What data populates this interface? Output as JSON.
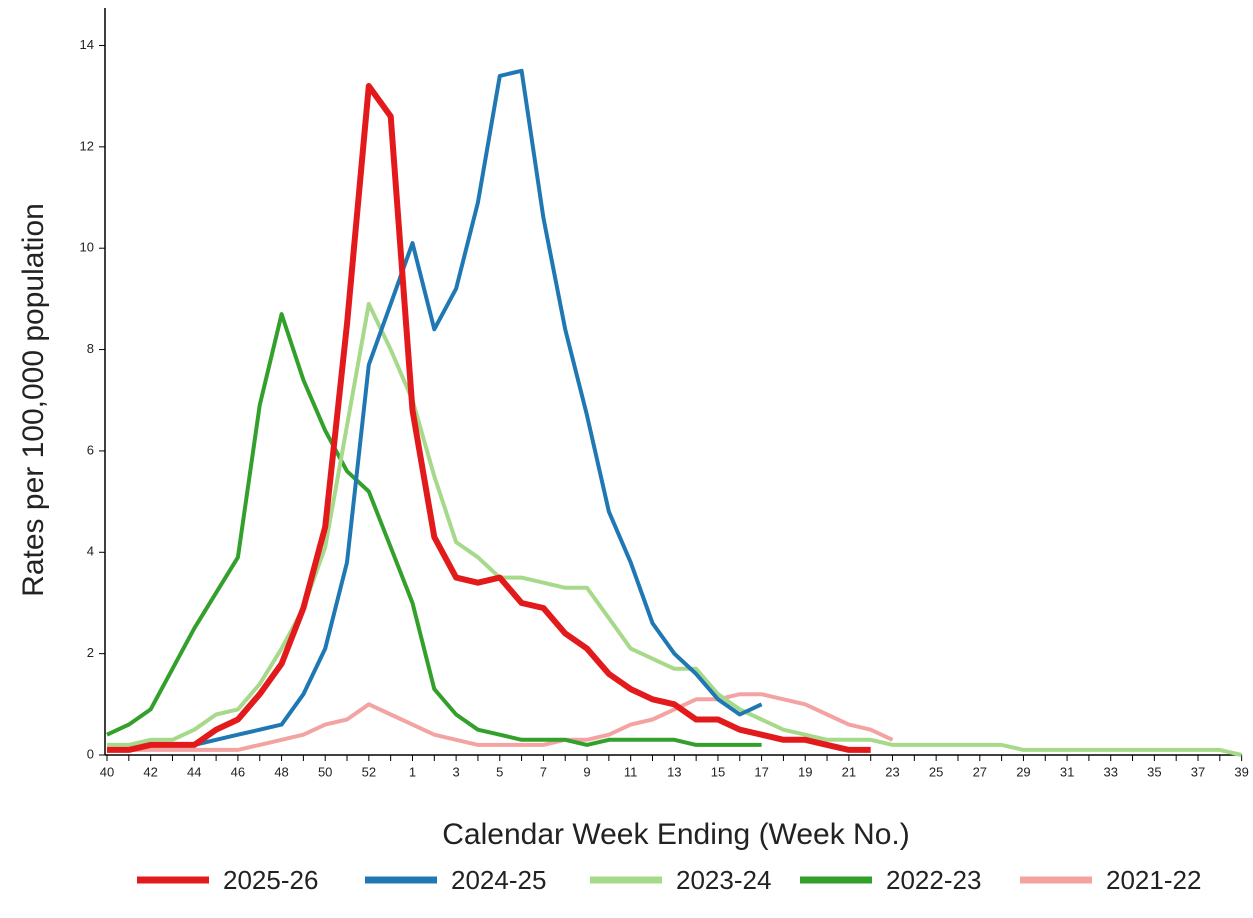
{
  "chart_data": {
    "type": "line",
    "x_label": "Calendar Week Ending (Week No.)",
    "y_label": "Rates per 100,000 population",
    "categories": [
      "40",
      null,
      "42",
      null,
      "44",
      null,
      "46",
      null,
      "48",
      null,
      "50",
      null,
      "52",
      null,
      "1",
      null,
      "3",
      null,
      "5",
      null,
      "7",
      null,
      "9",
      null,
      "11",
      null,
      "13",
      null,
      "15",
      null,
      "17",
      null,
      "19",
      null,
      "21",
      null,
      "23",
      null,
      "25",
      null,
      "27",
      null,
      "29",
      null,
      "31",
      null,
      "33",
      null,
      "35",
      null,
      "37",
      null,
      "39"
    ],
    "ylim": [
      0,
      14.7
    ],
    "yticks": [
      0,
      2,
      4,
      6,
      8,
      10,
      12,
      14
    ],
    "grid": false,
    "legend": "bottom",
    "series": [
      {
        "name": "2025-26",
        "color": "#e31a1c",
        "width": 6,
        "values": [
          0.1,
          0.1,
          0.2,
          0.2,
          0.2,
          0.5,
          0.7,
          1.2,
          1.8,
          2.9,
          4.5,
          8.5,
          13.2,
          12.6,
          6.8,
          4.3,
          3.5,
          3.4,
          3.5,
          3.0,
          2.9,
          2.4,
          2.1,
          1.6,
          1.3,
          1.1,
          1.0,
          0.7,
          0.7,
          0.5,
          0.4,
          0.3,
          0.3,
          0.2,
          0.1,
          0.1,
          null,
          null,
          null,
          null,
          null,
          null,
          null,
          null,
          null,
          null,
          null,
          null,
          null,
          null,
          null,
          null,
          null
        ]
      },
      {
        "name": "2024-25",
        "color": "#1f78b4",
        "width": 4,
        "values": [
          0.1,
          0.1,
          0.2,
          0.2,
          0.2,
          0.3,
          0.4,
          0.5,
          0.6,
          1.2,
          2.1,
          3.8,
          7.7,
          8.9,
          10.1,
          8.4,
          9.2,
          10.9,
          13.4,
          13.5,
          10.6,
          8.4,
          6.7,
          4.8,
          3.8,
          2.6,
          2.0,
          1.6,
          1.1,
          0.8,
          1.0,
          null,
          null,
          null,
          null,
          null,
          null,
          null,
          null,
          null,
          null,
          null,
          null,
          null,
          null,
          null,
          null,
          null,
          null,
          null,
          null,
          null,
          null
        ]
      },
      {
        "name": "2023-24",
        "color": "#a6d98a",
        "width": 4,
        "values": [
          0.2,
          0.2,
          0.3,
          0.3,
          0.5,
          0.8,
          0.9,
          1.4,
          2.1,
          2.9,
          4.1,
          6.5,
          8.9,
          8.0,
          7.0,
          5.5,
          4.2,
          3.9,
          3.5,
          3.5,
          3.4,
          3.3,
          3.3,
          2.7,
          2.1,
          1.9,
          1.7,
          1.7,
          1.2,
          0.9,
          0.7,
          0.5,
          0.4,
          0.3,
          0.3,
          0.3,
          0.2,
          0.2,
          0.2,
          0.2,
          0.2,
          0.2,
          0.1,
          0.1,
          0.1,
          0.1,
          0.1,
          0.1,
          0.1,
          0.1,
          0.1,
          0.1,
          0
        ]
      },
      {
        "name": "2022-23",
        "color": "#33a02c",
        "width": 4,
        "values": [
          0.4,
          0.6,
          0.9,
          1.7,
          2.5,
          3.2,
          3.9,
          6.9,
          8.7,
          7.4,
          6.4,
          5.6,
          5.2,
          4.1,
          3.0,
          1.3,
          0.8,
          0.5,
          0.4,
          0.3,
          0.3,
          0.3,
          0.2,
          0.3,
          0.3,
          0.3,
          0.3,
          0.2,
          0.2,
          0.2,
          0.2,
          null,
          null,
          null,
          null,
          null,
          null,
          null,
          null,
          null,
          null,
          null,
          null,
          null,
          null,
          null,
          null,
          null,
          null,
          null,
          null,
          null,
          null
        ]
      },
      {
        "name": "2021-22",
        "color": "#f4a3a3",
        "width": 4,
        "values": [
          0.1,
          0.1,
          0.1,
          0.1,
          0.1,
          0.1,
          0.1,
          0.2,
          0.3,
          0.4,
          0.6,
          0.7,
          1.0,
          0.8,
          0.6,
          0.4,
          0.3,
          0.2,
          0.2,
          0.2,
          0.2,
          0.3,
          0.3,
          0.4,
          0.6,
          0.7,
          0.9,
          1.1,
          1.1,
          1.2,
          1.2,
          1.1,
          1.0,
          0.8,
          0.6,
          0.5,
          0.3,
          null,
          null,
          null,
          null,
          null,
          null,
          null,
          null,
          null,
          null,
          null,
          null,
          null,
          null,
          null,
          null
        ]
      }
    ]
  }
}
